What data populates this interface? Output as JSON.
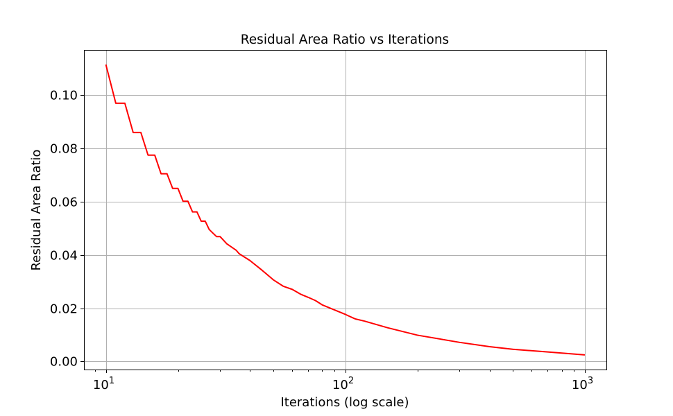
{
  "chart_data": {
    "type": "line",
    "title": "Residual Area Ratio vs Iterations",
    "xlabel": "Iterations (log scale)",
    "ylabel": "Residual Area Ratio",
    "xscale": "log",
    "xlim": [
      8.1,
      1230
    ],
    "ylim": [
      -0.003,
      0.117
    ],
    "x_ticks": [
      {
        "value": 10,
        "base": "10",
        "exp": "1"
      },
      {
        "value": 100,
        "base": "10",
        "exp": "2"
      },
      {
        "value": 1000,
        "base": "10",
        "exp": "3"
      }
    ],
    "y_ticks": [
      {
        "value": 0.0,
        "label": "0.00"
      },
      {
        "value": 0.02,
        "label": "0.02"
      },
      {
        "value": 0.04,
        "label": "0.04"
      },
      {
        "value": 0.06,
        "label": "0.06"
      },
      {
        "value": 0.08,
        "label": "0.08"
      },
      {
        "value": 0.1,
        "label": "0.10"
      }
    ],
    "grid": true,
    "series": [
      {
        "color": "#ff0000",
        "x": [
          10,
          11,
          12,
          13,
          14,
          15,
          16,
          17,
          18,
          19,
          20,
          21,
          22,
          23,
          24,
          25,
          26,
          27,
          28,
          29,
          30,
          32,
          35,
          36,
          40,
          45,
          50,
          55,
          60,
          65,
          70,
          75,
          80,
          90,
          100,
          110,
          120,
          150,
          200,
          300,
          400,
          500,
          700,
          1000
        ],
        "y": [
          0.1115,
          0.097,
          0.097,
          0.086,
          0.086,
          0.0775,
          0.0775,
          0.0705,
          0.0705,
          0.065,
          0.065,
          0.0602,
          0.0602,
          0.0562,
          0.0562,
          0.0527,
          0.0527,
          0.0496,
          0.0482,
          0.0469,
          0.0469,
          0.0442,
          0.0418,
          0.0405,
          0.0379,
          0.0342,
          0.0307,
          0.0283,
          0.0271,
          0.0253,
          0.0241,
          0.0229,
          0.0213,
          0.0194,
          0.0177,
          0.016,
          0.0152,
          0.0127,
          0.0099,
          0.0072,
          0.0056,
          0.0046,
          0.0036,
          0.0025
        ]
      }
    ]
  }
}
